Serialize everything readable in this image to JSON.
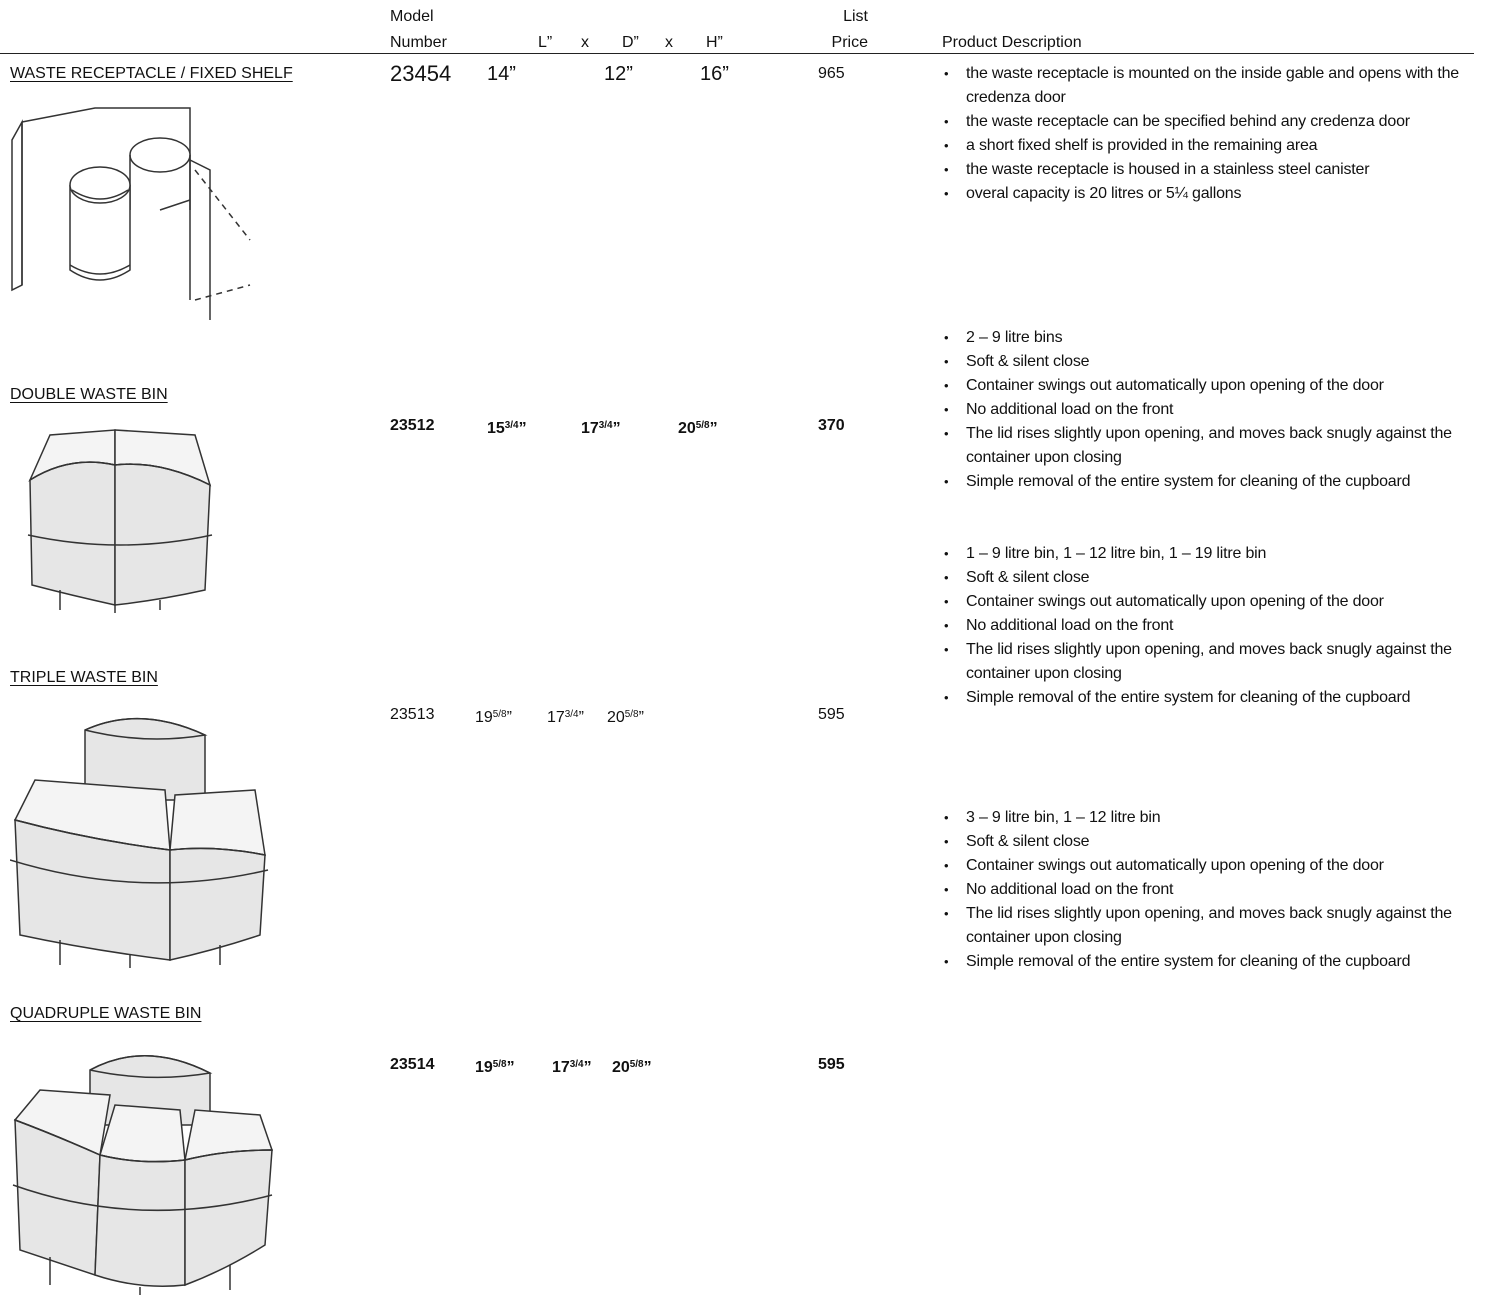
{
  "header": {
    "model": "Model",
    "number": "Number",
    "length": "L”",
    "times1": "x",
    "depth": "D”",
    "times2": "x",
    "height": "H”",
    "list": "List",
    "price": "Price",
    "description": "Product Description"
  },
  "products": [
    {
      "name": "WASTE RECEPTACLE / FIXED SHELF",
      "model": "23454",
      "dimensions": [
        {
          "whole": "14",
          "unit": "”"
        },
        {
          "whole": "12",
          "unit": "”"
        },
        {
          "whole": "16",
          "unit": "”"
        }
      ],
      "price": "965",
      "description": [
        "the waste receptacle is mounted on the inside gable and opens with the credenza door",
        "the waste receptacle can be specified behind any credenza door",
        "a short fixed shelf is provided in the remaining area",
        "the waste receptacle is housed in a stainless steel canister",
        "overal capacity is 20 litres or 5¼ gallons"
      ]
    },
    {
      "name": "DOUBLE WASTE BIN",
      "model": "23512",
      "dimensions": [
        {
          "whole": "15",
          "fraction": "3/4",
          "unit": "”"
        },
        {
          "whole": "17",
          "fraction": "3/4",
          "unit": "”"
        },
        {
          "whole": "20",
          "fraction": "5/8",
          "unit": "”"
        }
      ],
      "price": "370",
      "description": [
        "2 – 9 litre bins",
        "Soft & silent close",
        "Container swings out automatically upon opening of the door",
        "No additional load on the front",
        "The lid rises slightly upon opening, and moves back snugly against the container upon closing",
        "Simple removal of the entire system for cleaning of the cupboard"
      ]
    },
    {
      "name": "TRIPLE WASTE BIN",
      "model": "23513",
      "dimensions": [
        {
          "whole": "19",
          "fraction": "5/8",
          "unit": "”"
        },
        {
          "whole": "17",
          "fraction": "3/4",
          "unit": "”"
        },
        {
          "whole": "20",
          "fraction": "5/8",
          "unit": "”"
        }
      ],
      "price": "595",
      "description": [
        "1 – 9 litre bin, 1 – 12 litre bin, 1 – 19 litre bin",
        "Soft & silent close",
        "Container swings out automatically upon opening of the door",
        "No additional load on the front",
        "The lid rises slightly upon opening, and moves back snugly against the container upon closing",
        "Simple removal of the entire system for cleaning of the cupboard"
      ]
    },
    {
      "name": "QUADRUPLE WASTE BIN",
      "model": "23514",
      "dimensions": [
        {
          "whole": "19",
          "fraction": "5/8",
          "unit": "”"
        },
        {
          "whole": "17",
          "fraction": "3/4",
          "unit": "”"
        },
        {
          "whole": "20",
          "fraction": "5/8",
          "unit": "”"
        }
      ],
      "price": "595",
      "description": [
        "3 – 9 litre bin, 1 – 12 litre bin",
        "Soft & silent close",
        "Container swings out automatically upon opening of the door",
        "No additional load on the front",
        "The lid rises slightly upon opening, and moves back snugly against the container upon closing",
        "Simple removal of the entire system for cleaning of the cupboard"
      ]
    }
  ]
}
